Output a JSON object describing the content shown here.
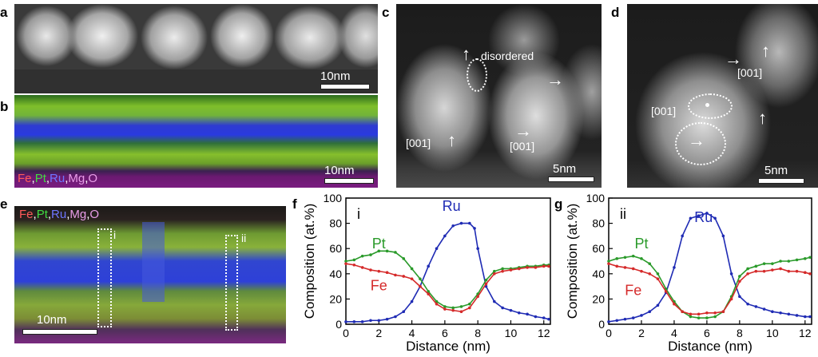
{
  "panels": {
    "a": {
      "label": "a",
      "scale": "10nm"
    },
    "b": {
      "label": "b",
      "scale": "10nm",
      "legend": [
        "Fe",
        "Pt",
        "Ru",
        "Mg",
        "O"
      ],
      "legend_colors": [
        "#ff4b4b",
        "#3dd13d",
        "#5a63ff",
        "#e088e8",
        "#e088e8"
      ]
    },
    "c": {
      "label": "c",
      "scale": "5nm",
      "annotations": {
        "disordered": "disordered",
        "dir1": "[001]",
        "dir2": "[001]"
      }
    },
    "d": {
      "label": "d",
      "scale": "5nm",
      "annotations": {
        "dir1": "[001]",
        "dir2": "[001]"
      }
    },
    "e": {
      "label": "e",
      "scale": "10nm",
      "legend": [
        "Fe",
        "Pt",
        "Ru",
        "Mg",
        "O"
      ],
      "line_i": "i",
      "line_ii": "ii"
    },
    "f": {
      "label": "f",
      "roman": "i"
    },
    "g": {
      "label": "g",
      "roman": "ii"
    }
  },
  "chart_data": [
    {
      "type": "line",
      "panel": "f",
      "xlabel": "Distance (nm)",
      "ylabel": "Composition (at.%)",
      "xlim": [
        0,
        12.4
      ],
      "ylim": [
        0,
        100
      ],
      "xticks": [
        0,
        2,
        4,
        6,
        8,
        10,
        12
      ],
      "yticks": [
        0,
        20,
        40,
        60,
        80,
        100
      ],
      "series": [
        {
          "name": "Ru",
          "color": "#1f2bb4",
          "x": [
            0,
            0.5,
            1,
            1.5,
            2,
            2.5,
            3,
            3.5,
            4,
            4.5,
            5,
            5.5,
            6,
            6.5,
            7,
            7.5,
            7.8,
            8,
            8.5,
            9,
            9.5,
            10,
            10.5,
            11,
            11.5,
            12,
            12.3
          ],
          "y": [
            2,
            2,
            2,
            3,
            3,
            4,
            6,
            10,
            18,
            30,
            46,
            60,
            70,
            78,
            80,
            80,
            76,
            60,
            30,
            18,
            13,
            11,
            9,
            8,
            6,
            5,
            4
          ]
        },
        {
          "name": "Pt",
          "color": "#2a9a2a",
          "x": [
            0,
            0.5,
            1,
            1.5,
            2,
            2.5,
            3,
            3.5,
            4,
            4.5,
            5,
            5.5,
            6,
            6.5,
            7,
            7.5,
            8,
            8.5,
            9,
            9.5,
            10,
            10.5,
            11,
            11.5,
            12,
            12.3
          ],
          "y": [
            50,
            51,
            54,
            55,
            58,
            58,
            57,
            52,
            44,
            36,
            26,
            18,
            14,
            13,
            14,
            16,
            24,
            35,
            42,
            44,
            44,
            45,
            46,
            46,
            47,
            47
          ]
        },
        {
          "name": "Fe",
          "color": "#d52a2a",
          "x": [
            0,
            0.5,
            1,
            1.5,
            2,
            2.5,
            3,
            3.5,
            4,
            4.5,
            5,
            5.5,
            6,
            6.5,
            7,
            7.5,
            8,
            8.5,
            9,
            9.5,
            10,
            10.5,
            11,
            11.5,
            12,
            12.3
          ],
          "y": [
            48,
            47,
            45,
            43,
            42,
            41,
            39,
            38,
            36,
            30,
            24,
            16,
            12,
            11,
            10,
            13,
            22,
            32,
            40,
            42,
            43,
            44,
            45,
            45,
            46,
            46
          ]
        }
      ],
      "labels": {
        "Ru": "Ru",
        "Pt": "Pt",
        "Fe": "Fe"
      }
    },
    {
      "type": "line",
      "panel": "g",
      "xlabel": "Distance (nm)",
      "ylabel": "Composition (at.%)",
      "xlim": [
        0,
        12.4
      ],
      "ylim": [
        0,
        100
      ],
      "xticks": [
        0,
        2,
        4,
        6,
        8,
        10,
        12
      ],
      "yticks": [
        0,
        20,
        40,
        60,
        80,
        100
      ],
      "series": [
        {
          "name": "Ru",
          "color": "#1f2bb4",
          "x": [
            0,
            0.5,
            1,
            1.5,
            2,
            2.5,
            3,
            3.5,
            4,
            4.5,
            5,
            5.5,
            6,
            6.5,
            7,
            7.5,
            8,
            8.5,
            9,
            9.5,
            10,
            10.5,
            11,
            11.5,
            12,
            12.3
          ],
          "y": [
            2,
            3,
            4,
            5,
            7,
            10,
            15,
            25,
            45,
            70,
            84,
            86,
            88,
            84,
            70,
            40,
            22,
            16,
            14,
            12,
            10,
            9,
            8,
            7,
            6,
            6
          ]
        },
        {
          "name": "Pt",
          "color": "#2a9a2a",
          "x": [
            0,
            0.5,
            1,
            1.5,
            2,
            2.5,
            3,
            3.5,
            4,
            4.5,
            5,
            5.5,
            6,
            6.5,
            7,
            7.5,
            8,
            8.5,
            9,
            9.5,
            10,
            10.5,
            11,
            11.5,
            12,
            12.3
          ],
          "y": [
            50,
            52,
            53,
            54,
            52,
            48,
            40,
            28,
            18,
            10,
            6,
            5,
            5,
            6,
            10,
            22,
            38,
            44,
            46,
            48,
            48,
            50,
            50,
            51,
            52,
            53
          ]
        },
        {
          "name": "Fe",
          "color": "#d52a2a",
          "x": [
            0,
            0.5,
            1,
            1.5,
            2,
            2.5,
            3,
            3.5,
            4,
            4.5,
            5,
            5.5,
            6,
            6.5,
            7,
            7.5,
            8,
            8.5,
            9,
            9.5,
            10,
            10.5,
            11,
            11.5,
            12,
            12.3
          ],
          "y": [
            48,
            46,
            45,
            44,
            42,
            40,
            36,
            26,
            16,
            10,
            8,
            8,
            9,
            9,
            10,
            20,
            34,
            40,
            42,
            42,
            43,
            44,
            42,
            42,
            41,
            40
          ]
        }
      ],
      "labels": {
        "Ru": "Ru",
        "Pt": "Pt",
        "Fe": "Fe"
      }
    }
  ]
}
